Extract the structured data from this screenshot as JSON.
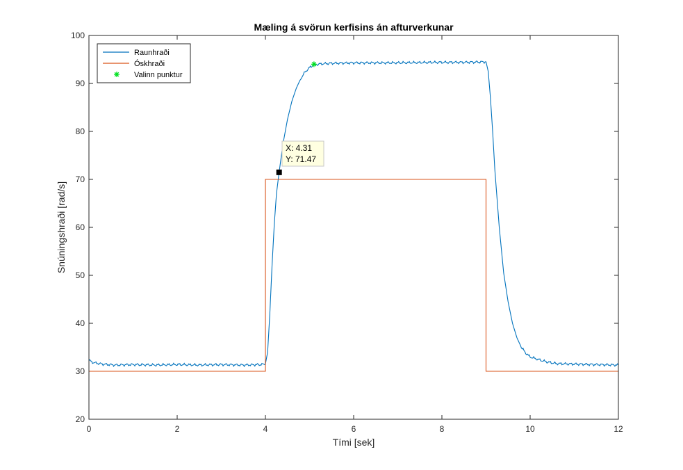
{
  "chart_data": {
    "type": "line",
    "title": "Mæling á svörun kerfisins án afturverkunar",
    "xlabel": "Tími [sek]",
    "ylabel": "Snúningshraði [rad/s]",
    "xlim": [
      0,
      12
    ],
    "ylim": [
      20,
      100
    ],
    "xticks": [
      0,
      2,
      4,
      6,
      8,
      10,
      12
    ],
    "yticks": [
      20,
      30,
      40,
      50,
      60,
      70,
      80,
      90,
      100
    ],
    "grid": false,
    "legend_position": "top-left",
    "series": [
      {
        "name": "Raunhraði",
        "color": "#0072BD",
        "x": [
          0,
          0.1,
          0.3,
          0.6,
          1.0,
          1.5,
          2.0,
          2.5,
          3.0,
          3.5,
          3.9,
          4.0,
          4.05,
          4.1,
          4.15,
          4.2,
          4.25,
          4.31,
          4.4,
          4.5,
          4.6,
          4.7,
          4.8,
          4.9,
          5.0,
          5.1,
          5.3,
          5.5,
          6.0,
          7.0,
          8.0,
          8.5,
          9.0,
          9.05,
          9.1,
          9.15,
          9.2,
          9.3,
          9.4,
          9.5,
          9.6,
          9.7,
          9.8,
          9.9,
          10.0,
          10.2,
          10.4,
          10.6,
          11.0,
          11.5,
          12.0
        ],
        "y": [
          32.3,
          31.8,
          31.5,
          31.3,
          31.4,
          31.3,
          31.4,
          31.3,
          31.4,
          31.3,
          31.4,
          31.5,
          34.0,
          42.0,
          52.0,
          60.5,
          67.0,
          71.47,
          77.5,
          82.5,
          86.3,
          89.0,
          91.0,
          92.4,
          93.3,
          93.9,
          94.1,
          94.2,
          94.3,
          94.3,
          94.4,
          94.4,
          94.5,
          92.5,
          87.0,
          80.0,
          72.0,
          60.0,
          50.5,
          44.5,
          40.0,
          37.0,
          35.0,
          33.8,
          33.0,
          32.4,
          31.9,
          31.6,
          31.5,
          31.4,
          31.3
        ]
      },
      {
        "name": "Óskhraði",
        "color": "#D95319",
        "x": [
          0,
          4,
          4,
          9,
          9,
          12
        ],
        "y": [
          30,
          30,
          70,
          70,
          30,
          30
        ]
      }
    ],
    "markers": [
      {
        "name": "Valinn punktur",
        "color": "#00E020",
        "symbol": "asterisk",
        "x": 5.1,
        "y": 94.0
      }
    ],
    "datatip": {
      "x": 4.31,
      "y": 71.47,
      "x_text": "X: 4.31",
      "y_text": "Y: 71.47"
    }
  }
}
